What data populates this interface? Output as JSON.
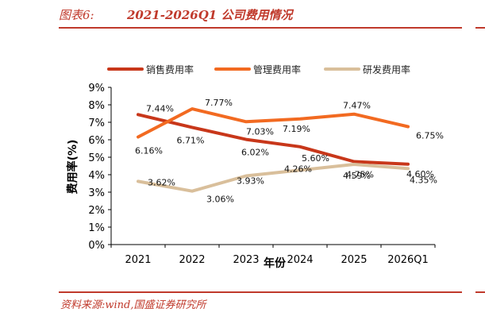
{
  "header": {
    "figure_label": "图表6:",
    "title": "2021-2026Q1 公司费用情况"
  },
  "footer": {
    "source": "资料来源:wind,国盛证券研究所"
  },
  "colors": {
    "accent": "#c0392b",
    "sales": "#c8371a",
    "admin": "#f26a21",
    "rd": "#d9bf9b"
  },
  "chart_data": {
    "type": "line",
    "categories": [
      "2021",
      "2022",
      "2023",
      "2024",
      "2025",
      "2026Q1"
    ],
    "series": [
      {
        "name": "销售费用率",
        "values": [
          7.44,
          6.71,
          6.02,
          5.6,
          4.75,
          4.6
        ],
        "labels": [
          "7.44%",
          "6.71%",
          "6.02%",
          "5.60%",
          "4.75%",
          "4.60%"
        ]
      },
      {
        "name": "管理费用率",
        "values": [
          6.16,
          7.77,
          7.03,
          7.19,
          7.47,
          6.75
        ],
        "labels": [
          "6.16%",
          "7.77%",
          "7.03%",
          "7.19%",
          "7.47%",
          "6.75%"
        ]
      },
      {
        "name": "研发费用率",
        "values": [
          3.62,
          3.06,
          3.93,
          4.26,
          4.59,
          4.35
        ],
        "labels": [
          "3.62%",
          "3.06%",
          "3.93%",
          "4.26%",
          "4.59%",
          "4.35%"
        ]
      }
    ],
    "ylabel": "费用率(%)",
    "xlabel": "年份",
    "ylim": [
      0,
      9
    ],
    "yticks": [
      "0%",
      "1%",
      "2%",
      "3%",
      "4%",
      "5%",
      "6%",
      "7%",
      "8%",
      "9%"
    ],
    "grid": false,
    "legend_position": "top"
  }
}
